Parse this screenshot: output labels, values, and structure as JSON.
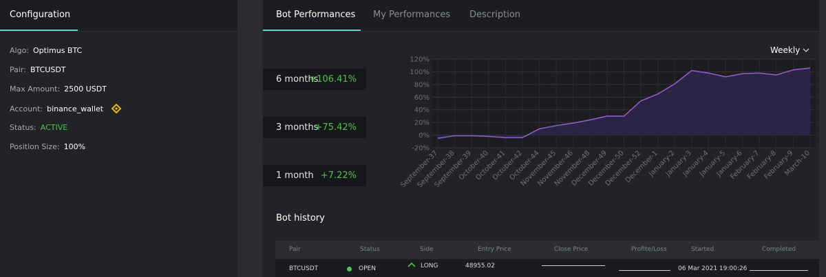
{
  "sidebar": {
    "title": "Configuration",
    "fields": [
      {
        "label": "Algo:",
        "value": "Optimus BTC"
      },
      {
        "label": "Pair:",
        "value": "BTCUSDT"
      },
      {
        "label": "Max Amount:",
        "value": "2500 USDT"
      },
      {
        "label": "Account:",
        "value": "binance_wallet"
      },
      {
        "label": "Status:",
        "value": "ACTIVE"
      },
      {
        "label": "Position Size:",
        "value": "100%"
      }
    ]
  },
  "tabs": [
    "Bot Performances",
    "My Performances",
    "Description"
  ],
  "period": "Weekly",
  "performance": [
    {
      "label": "6 months",
      "value": "+106.41%"
    },
    {
      "label": "3 months",
      "value": "+75.42%"
    },
    {
      "label": "1 month",
      "value": "+7.22%"
    }
  ],
  "chart_data": {
    "type": "line",
    "color": "#8e5cc4",
    "area_color": "#2a2545",
    "categories": [
      "September-37",
      "September-38",
      "September-39",
      "October-40",
      "October-41",
      "October-42",
      "October-44",
      "November-45",
      "November-46",
      "November-48",
      "December-49",
      "December-50",
      "December-52",
      "December-1",
      "January-2",
      "January-3",
      "January-4",
      "January-5",
      "January-6",
      "February-7",
      "February-8",
      "February-9",
      "March-10"
    ],
    "values": [
      -5,
      -1,
      -1,
      -2,
      -4,
      -4,
      10,
      15,
      19,
      24,
      30,
      30,
      54,
      65,
      81,
      102,
      98,
      92,
      97,
      98,
      95,
      103,
      106
    ],
    "ylim": [
      -20,
      120
    ],
    "yticks": [
      {
        "value": -20,
        "label": "-20%"
      },
      {
        "value": 0,
        "label": "0%"
      },
      {
        "value": 20,
        "label": "20%"
      },
      {
        "value": 40,
        "label": "40%"
      },
      {
        "value": 60,
        "label": "60%"
      },
      {
        "value": 80,
        "label": "80%"
      },
      {
        "value": 100,
        "label": "100%"
      },
      {
        "value": 120,
        "label": "120%"
      }
    ],
    "grid": true
  },
  "history": {
    "title": "Bot history",
    "columns": [
      "Pair",
      "Status",
      "Side",
      "Entry Price",
      "Close Price",
      "Profite/Loss",
      "Started",
      "Completed"
    ],
    "rows": [
      {
        "pair": "BTCUSDT",
        "status": "OPEN",
        "side": "LONG",
        "entry_price": "48955.02",
        "started": "06 Mar 2021 19:00:26"
      }
    ]
  }
}
